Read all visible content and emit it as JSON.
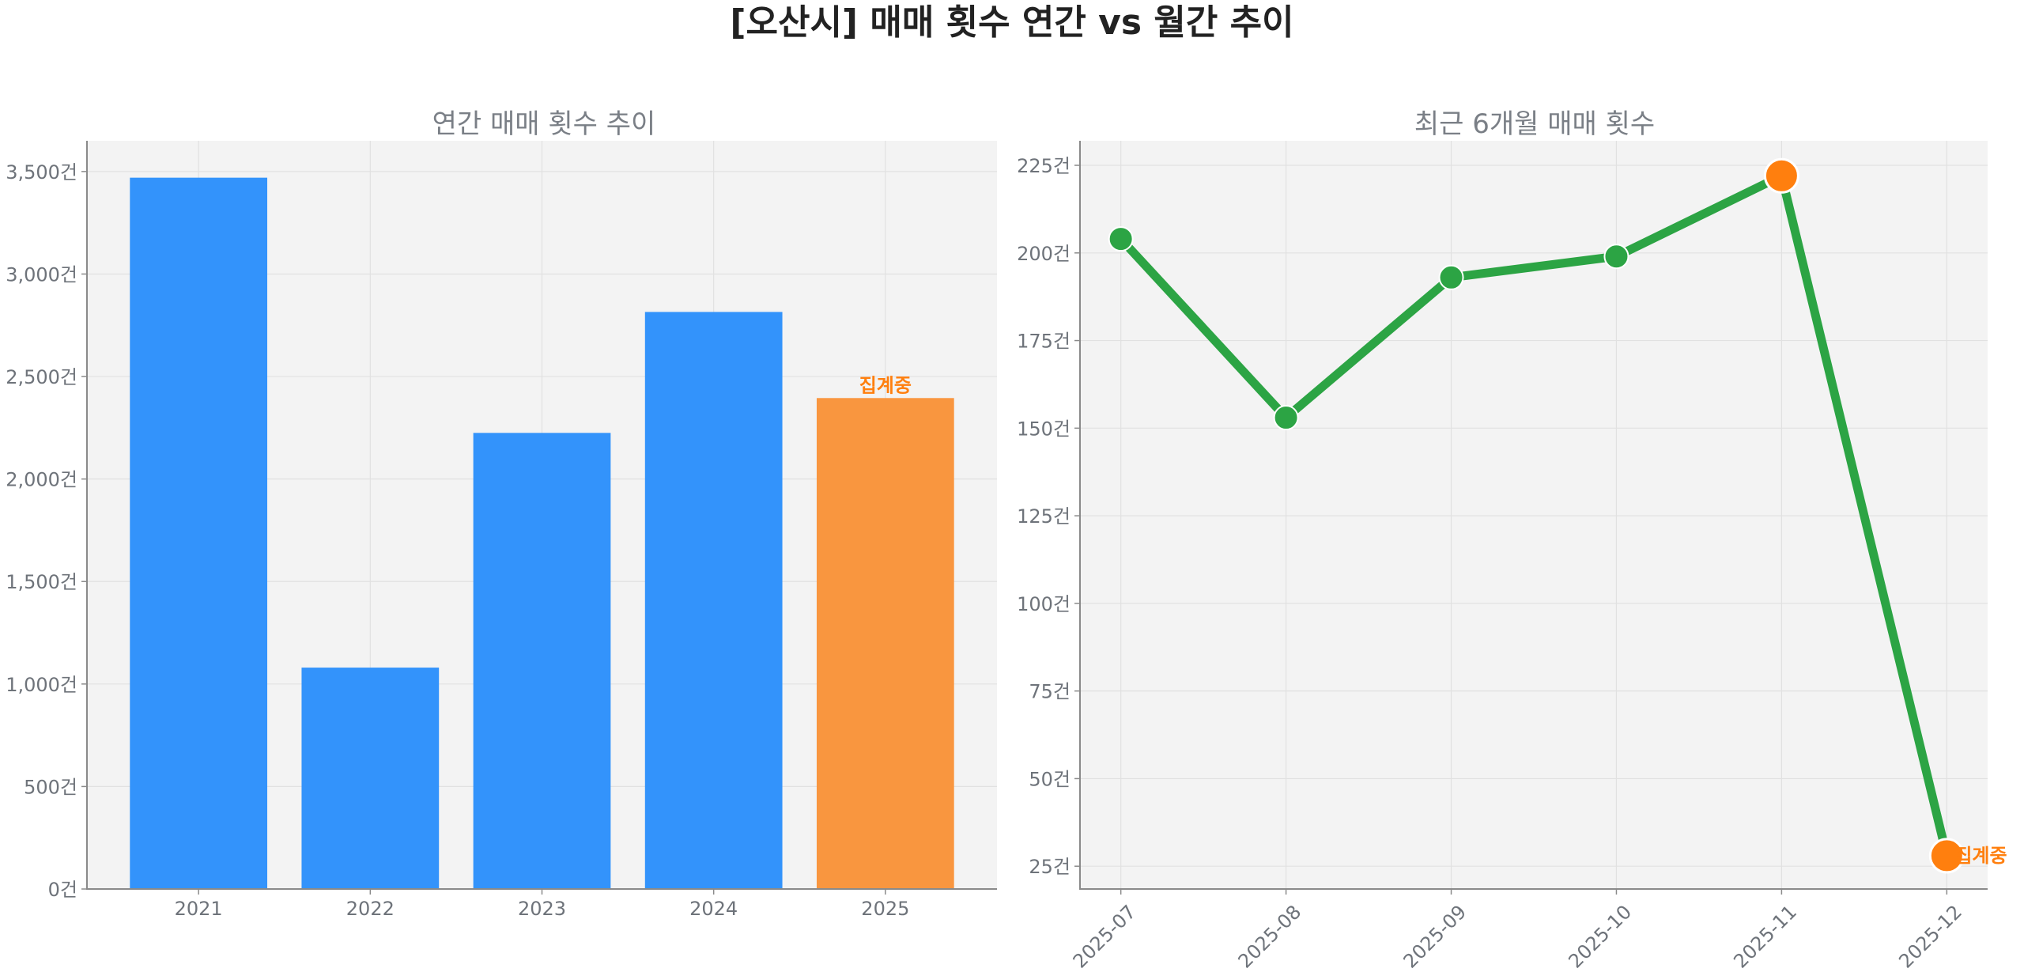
{
  "suptitle": "[오산시] 매매 횟수 연간 vs 월간 추이",
  "colors": {
    "bar": "#3393fb",
    "bar_current": "#f9963f",
    "line": "#2ca444",
    "point": "#2ca444",
    "highlight": "#ff7f0e",
    "note": "#ff7f0e",
    "plot_bg": "#f3f3f3"
  },
  "chart_data": [
    {
      "type": "bar",
      "title": "연간 매매 횟수 추이",
      "categories": [
        "2021",
        "2022",
        "2023",
        "2024",
        "2025"
      ],
      "values": [
        3470,
        1080,
        2225,
        2815,
        2395
      ],
      "ylim": [
        0,
        3650
      ],
      "yticks": [
        0,
        500,
        1000,
        1500,
        2000,
        2500,
        3000,
        3500
      ],
      "ytick_labels": [
        "0건",
        "500건",
        "1,000건",
        "1,500건",
        "2,000건",
        "2,500건",
        "3,000건",
        "3,500건"
      ],
      "grid": true,
      "highlight_index": 4,
      "annotation": {
        "category": "2025",
        "text": "집계중"
      }
    },
    {
      "type": "line",
      "title": "최근 6개월 매매 횟수",
      "x": [
        "2025-07",
        "2025-08",
        "2025-09",
        "2025-10",
        "2025-11",
        "2025-12"
      ],
      "values": [
        204,
        153,
        193,
        199,
        222,
        28
      ],
      "ylim": [
        18.5,
        232
      ],
      "yticks": [
        25,
        50,
        75,
        100,
        125,
        150,
        175,
        200,
        225
      ],
      "ytick_labels": [
        "25건",
        "50건",
        "75건",
        "100건",
        "125건",
        "150건",
        "175건",
        "200건",
        "225건"
      ],
      "grid": true,
      "highlight_points": [
        "2025-11",
        "2025-12"
      ],
      "annotation": {
        "x": "2025-12",
        "text": "집계중"
      }
    }
  ]
}
